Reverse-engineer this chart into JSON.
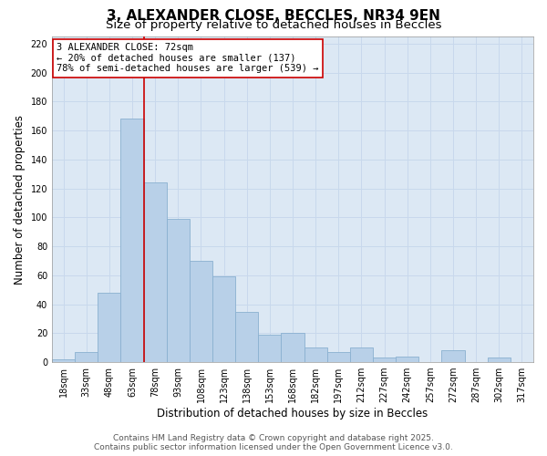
{
  "title": "3, ALEXANDER CLOSE, BECCLES, NR34 9EN",
  "subtitle": "Size of property relative to detached houses in Beccles",
  "xlabel": "Distribution of detached houses by size in Beccles",
  "ylabel": "Number of detached properties",
  "bar_labels": [
    "18sqm",
    "33sqm",
    "48sqm",
    "63sqm",
    "78sqm",
    "93sqm",
    "108sqm",
    "123sqm",
    "138sqm",
    "153sqm",
    "168sqm",
    "182sqm",
    "197sqm",
    "212sqm",
    "227sqm",
    "242sqm",
    "257sqm",
    "272sqm",
    "287sqm",
    "302sqm",
    "317sqm"
  ],
  "bar_values": [
    2,
    7,
    48,
    168,
    124,
    99,
    70,
    59,
    35,
    19,
    20,
    10,
    7,
    10,
    3,
    4,
    0,
    8,
    0,
    3,
    0
  ],
  "bar_color": "#b8d0e8",
  "bar_edge_color": "#8ab0d0",
  "vline_x_idx": 3.5,
  "vline_color": "#cc0000",
  "annotation_text_line1": "3 ALEXANDER CLOSE: 72sqm",
  "annotation_text_line2": "← 20% of detached houses are smaller (137)",
  "annotation_text_line3": "78% of semi-detached houses are larger (539) →",
  "ylim": [
    0,
    225
  ],
  "yticks": [
    0,
    20,
    40,
    60,
    80,
    100,
    120,
    140,
    160,
    180,
    200,
    220
  ],
  "grid_color": "#c8d8ec",
  "background_color": "#dce8f4",
  "footer_line1": "Contains HM Land Registry data © Crown copyright and database right 2025.",
  "footer_line2": "Contains public sector information licensed under the Open Government Licence v3.0.",
  "title_fontsize": 11,
  "subtitle_fontsize": 9.5,
  "axis_label_fontsize": 8.5,
  "tick_fontsize": 7,
  "annotation_fontsize": 7.5,
  "footer_fontsize": 6.5
}
